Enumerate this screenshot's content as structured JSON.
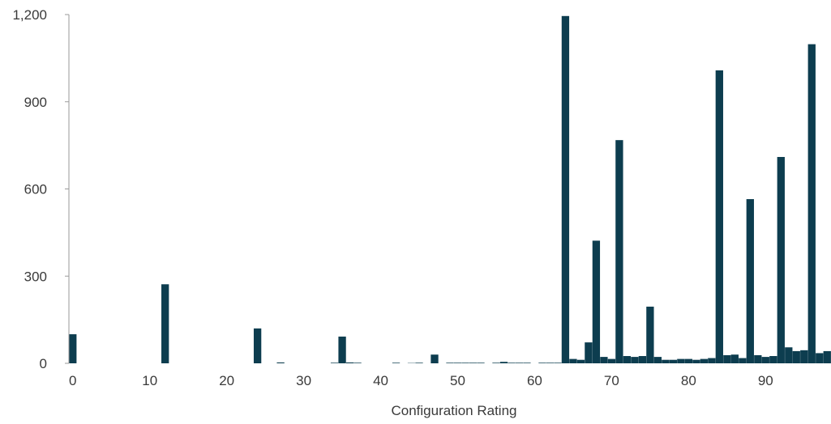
{
  "chart_data": {
    "type": "bar",
    "title": "",
    "xlabel": "Configuration Rating",
    "ylabel": "",
    "ylim": [
      0,
      1200
    ],
    "xlim": [
      0,
      98
    ],
    "y_ticks": [
      0,
      300,
      600,
      900,
      1200
    ],
    "y_tick_labels": [
      "0",
      "300",
      "600",
      "900",
      "1,200"
    ],
    "x_ticks": [
      0,
      10,
      20,
      30,
      40,
      50,
      60,
      70,
      80,
      90
    ],
    "x_tick_labels": [
      "0",
      "10",
      "20",
      "30",
      "40",
      "50",
      "60",
      "70",
      "80",
      "90"
    ],
    "grid": false,
    "bar_color": "#0d3d4f",
    "x": [
      0,
      1,
      2,
      3,
      4,
      5,
      6,
      7,
      8,
      9,
      10,
      11,
      12,
      13,
      14,
      15,
      16,
      17,
      18,
      19,
      20,
      21,
      22,
      23,
      24,
      25,
      26,
      27,
      28,
      29,
      30,
      31,
      32,
      33,
      34,
      35,
      36,
      37,
      38,
      39,
      40,
      41,
      42,
      43,
      44,
      45,
      46,
      47,
      48,
      49,
      50,
      51,
      52,
      53,
      54,
      55,
      56,
      57,
      58,
      59,
      60,
      61,
      62,
      63,
      64,
      65,
      66,
      67,
      68,
      69,
      70,
      71,
      72,
      73,
      74,
      75,
      76,
      77,
      78,
      79,
      80,
      81,
      82,
      83,
      84,
      85,
      86,
      87,
      88,
      89,
      90,
      91,
      92,
      93,
      94,
      95,
      96,
      97,
      98
    ],
    "values": [
      100,
      0,
      0,
      0,
      0,
      0,
      0,
      0,
      0,
      0,
      0,
      0,
      272,
      0,
      0,
      0,
      0,
      0,
      0,
      0,
      0,
      0,
      0,
      0,
      120,
      0,
      0,
      3,
      0,
      0,
      0,
      0,
      0,
      0,
      2,
      92,
      3,
      2,
      0,
      0,
      0,
      0,
      2,
      0,
      1,
      2,
      0,
      30,
      0,
      2,
      2,
      2,
      2,
      2,
      0,
      2,
      5,
      2,
      2,
      2,
      0,
      2,
      2,
      2,
      1195,
      15,
      12,
      72,
      422,
      22,
      15,
      768,
      25,
      22,
      25,
      195,
      22,
      12,
      12,
      15,
      15,
      12,
      15,
      18,
      1008,
      28,
      30,
      18,
      565,
      28,
      22,
      25,
      710,
      55,
      42,
      45,
      1098,
      35,
      42
    ]
  }
}
